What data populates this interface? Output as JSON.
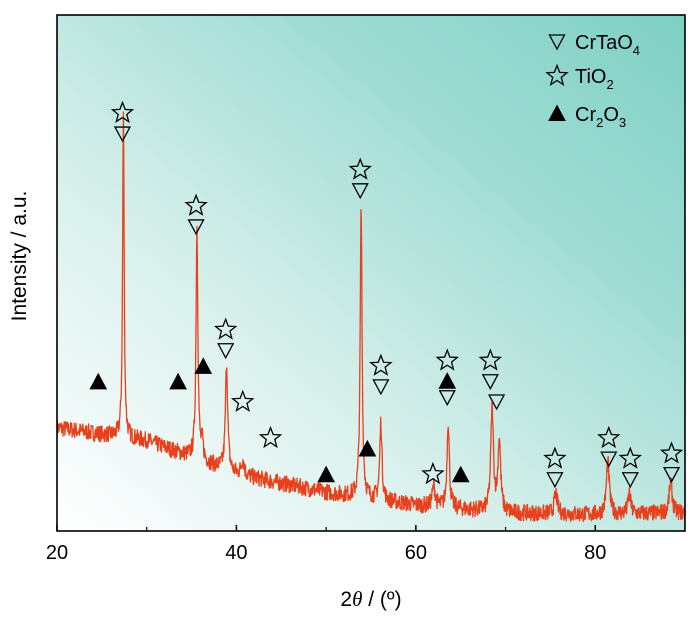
{
  "chart_data": {
    "type": "line",
    "xlabel": "2θ / (º)",
    "xlabel_parts": {
      "number": "2",
      "symbol": "θ",
      "rest": " / (º)"
    },
    "ylabel": "Intensity / a.u.",
    "xlim": [
      20,
      90
    ],
    "ylim": [
      0,
      100
    ],
    "x_ticks": [
      20,
      40,
      60,
      80
    ],
    "y_ticks_shown": false,
    "grid": false,
    "background": "gradient white (bottom-left) to teal (top-right)",
    "legend_placement": "top-right",
    "legend": [
      {
        "marker": "triangle-down-open",
        "label": "CrTaO4",
        "base": "CrTaO",
        "sub": "4"
      },
      {
        "marker": "star-open",
        "label": "TiO2",
        "base": "TiO",
        "sub": "2"
      },
      {
        "marker": "triangle-up-filled",
        "label": "Cr2O3",
        "base": "Cr",
        "sub": "2",
        "mid": "O",
        "sub2": "3"
      }
    ],
    "series": [
      {
        "color": "#e8401c",
        "baseline": [
          [
            20,
            20
          ],
          [
            30,
            17.5
          ],
          [
            40,
            11
          ],
          [
            50,
            7.5
          ],
          [
            60,
            5
          ],
          [
            70,
            3.5
          ],
          [
            80,
            3.2
          ],
          [
            90,
            3.5
          ]
        ],
        "peaks": [
          {
            "x": 27.4,
            "height": 63,
            "width": 0.2
          },
          {
            "x": 35.6,
            "height": 45,
            "width": 0.25
          },
          {
            "x": 36.2,
            "height": 3,
            "width": 0.3
          },
          {
            "x": 38.9,
            "height": 21,
            "width": 0.3
          },
          {
            "x": 40.7,
            "height": 3,
            "width": 0.4
          },
          {
            "x": 53.9,
            "height": 56,
            "width": 0.25
          },
          {
            "x": 56.1,
            "height": 15,
            "width": 0.3
          },
          {
            "x": 62.0,
            "height": 4,
            "width": 0.4
          },
          {
            "x": 63.6,
            "height": 17,
            "width": 0.3
          },
          {
            "x": 68.5,
            "height": 20,
            "width": 0.35
          },
          {
            "x": 69.3,
            "height": 14,
            "width": 0.35
          },
          {
            "x": 75.6,
            "height": 4,
            "width": 0.4
          },
          {
            "x": 81.4,
            "height": 10,
            "width": 0.4
          },
          {
            "x": 83.8,
            "height": 4,
            "width": 0.35
          },
          {
            "x": 88.4,
            "height": 6,
            "width": 0.4
          }
        ]
      }
    ],
    "annotations": [
      {
        "x": 27.3,
        "y": 81,
        "markers": [
          "star",
          "tri-down"
        ]
      },
      {
        "x": 35.5,
        "y": 63,
        "markers": [
          "star",
          "tri-down"
        ]
      },
      {
        "x": 38.8,
        "y": 39,
        "markers": [
          "star",
          "tri-down"
        ]
      },
      {
        "x": 53.8,
        "y": 70,
        "markers": [
          "star",
          "tri-down"
        ]
      },
      {
        "x": 56.1,
        "y": 32,
        "markers": [
          "star",
          "tri-down"
        ]
      },
      {
        "x": 63.5,
        "y": 33,
        "markers": [
          "star",
          "tri-up-filled",
          "tri-down"
        ]
      },
      {
        "x": 68.3,
        "y": 33,
        "markers": [
          "star",
          "tri-down"
        ]
      },
      {
        "x": 75.5,
        "y": 14,
        "markers": [
          "star",
          "tri-down"
        ]
      },
      {
        "x": 81.5,
        "y": 18,
        "markers": [
          "star",
          "tri-down"
        ]
      },
      {
        "x": 83.9,
        "y": 14,
        "markers": [
          "star",
          "tri-down"
        ]
      },
      {
        "x": 88.5,
        "y": 15,
        "markers": [
          "star",
          "tri-down"
        ]
      },
      {
        "x": 40.7,
        "y": 25,
        "markers": [
          "star"
        ]
      },
      {
        "x": 43.8,
        "y": 18,
        "markers": [
          "star"
        ]
      },
      {
        "x": 61.9,
        "y": 11,
        "markers": [
          "star"
        ]
      },
      {
        "x": 69.0,
        "y": 25,
        "markers": [
          "tri-down"
        ]
      },
      {
        "x": 24.6,
        "y": 29,
        "markers": [
          "tri-up-filled"
        ]
      },
      {
        "x": 33.5,
        "y": 29,
        "markers": [
          "tri-up-filled"
        ]
      },
      {
        "x": 36.3,
        "y": 32,
        "markers": [
          "tri-up-filled"
        ]
      },
      {
        "x": 50.0,
        "y": 11,
        "markers": [
          "tri-up-filled"
        ]
      },
      {
        "x": 54.6,
        "y": 16,
        "markers": [
          "tri-up-filled"
        ]
      },
      {
        "x": 65.0,
        "y": 11,
        "markers": [
          "tri-up-filled"
        ]
      }
    ]
  }
}
